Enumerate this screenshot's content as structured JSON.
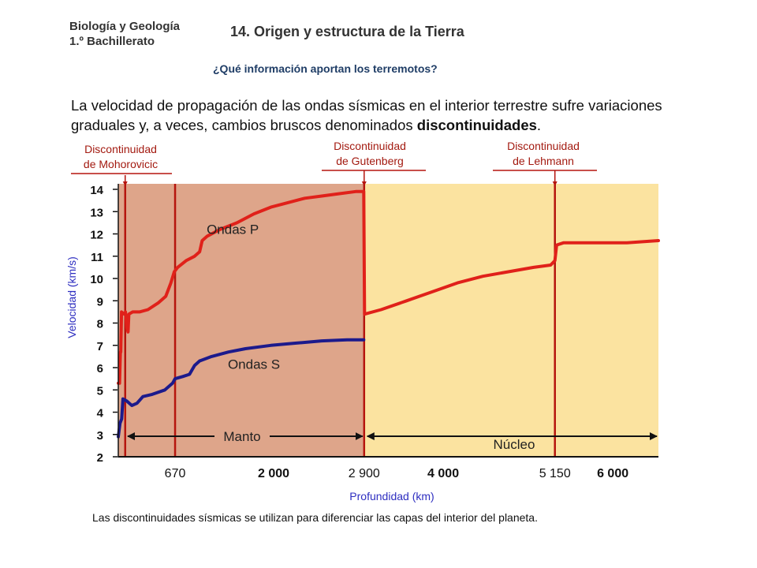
{
  "header": {
    "subject_line1": "Biología y Geología",
    "subject_line2": "1.º Bachillerato",
    "title": "14. Origen y estructura de la Tierra",
    "question": "¿Qué información aportan los terremotos?"
  },
  "intro": {
    "text_before": "La velocidad de propagación de las ondas sísmicas en el interior terrestre sufre variaciones graduales y, a veces, cambios bruscos denominados ",
    "bold": "discontinuidades",
    "text_after": "."
  },
  "discontinuities": [
    {
      "line1": "Discontinuidad",
      "line2": "de Mohorovicic"
    },
    {
      "line1": "Discontinuidad",
      "line2": "de Gutenberg"
    },
    {
      "line1": "Discontinuidad",
      "line2": "de Lehmann"
    }
  ],
  "footer": "Las discontinuidades sísmicas se utilizan para diferenciar las capas del interior del planeta.",
  "colors": {
    "mantle": "#dea58a",
    "core": "#fbe3a0",
    "p_wave": "#e0211a",
    "s_wave": "#1c1a8c",
    "boundary": "#b5150e",
    "disc_label": "#a31a10",
    "axis_label": "#2e2ec0"
  },
  "chart_data": {
    "type": "line",
    "ylabel": "Velocidad (km/s)",
    "xlabel": "Profundidad (km)",
    "ylim": [
      2,
      14
    ],
    "xlim": [
      0,
      6371
    ],
    "y_ticks": [
      "2",
      "3",
      "4",
      "5",
      "6",
      "7",
      "8",
      "9",
      "10",
      "11",
      "12",
      "13",
      "14"
    ],
    "x_ticks": [
      {
        "value": 670,
        "label": "670",
        "bold": false
      },
      {
        "value": 2000,
        "label": "2 000",
        "bold": true
      },
      {
        "value": 2900,
        "label": "2 900",
        "bold": false
      },
      {
        "value": 4000,
        "label": "4 000",
        "bold": true
      },
      {
        "value": 5150,
        "label": "5 150",
        "bold": false
      },
      {
        "value": 6000,
        "label": "6 000",
        "bold": true
      }
    ],
    "boundaries": [
      35,
      670,
      2900,
      5150
    ],
    "regions": [
      {
        "name": "Manto",
        "from": 0,
        "to": 2900
      },
      {
        "name": "Núcleo",
        "from": 2900,
        "to": 6371
      }
    ],
    "series": [
      {
        "name": "Ondas P",
        "points": [
          [
            0,
            5.3
          ],
          [
            15,
            5.3
          ],
          [
            25,
            6.7
          ],
          [
            30,
            6.7
          ],
          [
            38,
            8.5
          ],
          [
            70,
            8.4
          ],
          [
            85,
            8.5
          ],
          [
            100,
            7.8
          ],
          [
            115,
            7.6
          ],
          [
            125,
            8.4
          ],
          [
            170,
            8.5
          ],
          [
            250,
            8.5
          ],
          [
            350,
            8.6
          ],
          [
            470,
            8.9
          ],
          [
            560,
            9.2
          ],
          [
            620,
            9.8
          ],
          [
            660,
            10.3
          ],
          [
            700,
            10.5
          ],
          [
            800,
            10.8
          ],
          [
            900,
            11.0
          ],
          [
            960,
            11.2
          ],
          [
            990,
            11.7
          ],
          [
            1050,
            11.9
          ],
          [
            1200,
            12.2
          ],
          [
            1400,
            12.5
          ],
          [
            1600,
            12.9
          ],
          [
            1800,
            13.2
          ],
          [
            2000,
            13.4
          ],
          [
            2200,
            13.6
          ],
          [
            2400,
            13.7
          ],
          [
            2600,
            13.8
          ],
          [
            2800,
            13.9
          ],
          [
            2895,
            13.9
          ],
          [
            2905,
            8.4
          ],
          [
            3100,
            8.6
          ],
          [
            3400,
            9.0
          ],
          [
            3700,
            9.4
          ],
          [
            4000,
            9.8
          ],
          [
            4300,
            10.1
          ],
          [
            4600,
            10.3
          ],
          [
            4900,
            10.5
          ],
          [
            5100,
            10.6
          ],
          [
            5150,
            10.8
          ],
          [
            5170,
            11.5
          ],
          [
            5250,
            11.6
          ],
          [
            5600,
            11.6
          ],
          [
            6000,
            11.6
          ],
          [
            6371,
            11.7
          ]
        ]
      },
      {
        "name": "Ondas S",
        "points": [
          [
            0,
            2.9
          ],
          [
            20,
            3.5
          ],
          [
            40,
            3.7
          ],
          [
            55,
            4.6
          ],
          [
            100,
            4.5
          ],
          [
            160,
            4.3
          ],
          [
            220,
            4.4
          ],
          [
            290,
            4.7
          ],
          [
            400,
            4.8
          ],
          [
            550,
            5.0
          ],
          [
            640,
            5.3
          ],
          [
            670,
            5.5
          ],
          [
            760,
            5.6
          ],
          [
            840,
            5.7
          ],
          [
            900,
            6.1
          ],
          [
            960,
            6.3
          ],
          [
            1100,
            6.5
          ],
          [
            1300,
            6.7
          ],
          [
            1500,
            6.85
          ],
          [
            1800,
            7.0
          ],
          [
            2100,
            7.1
          ],
          [
            2400,
            7.2
          ],
          [
            2700,
            7.25
          ],
          [
            2895,
            7.25
          ]
        ]
      }
    ],
    "series_labels": [
      {
        "text": "Ondas P",
        "x": 1350,
        "y": 12.0
      },
      {
        "text": "Ondas S",
        "x": 1600,
        "y": 5.95
      }
    ]
  }
}
